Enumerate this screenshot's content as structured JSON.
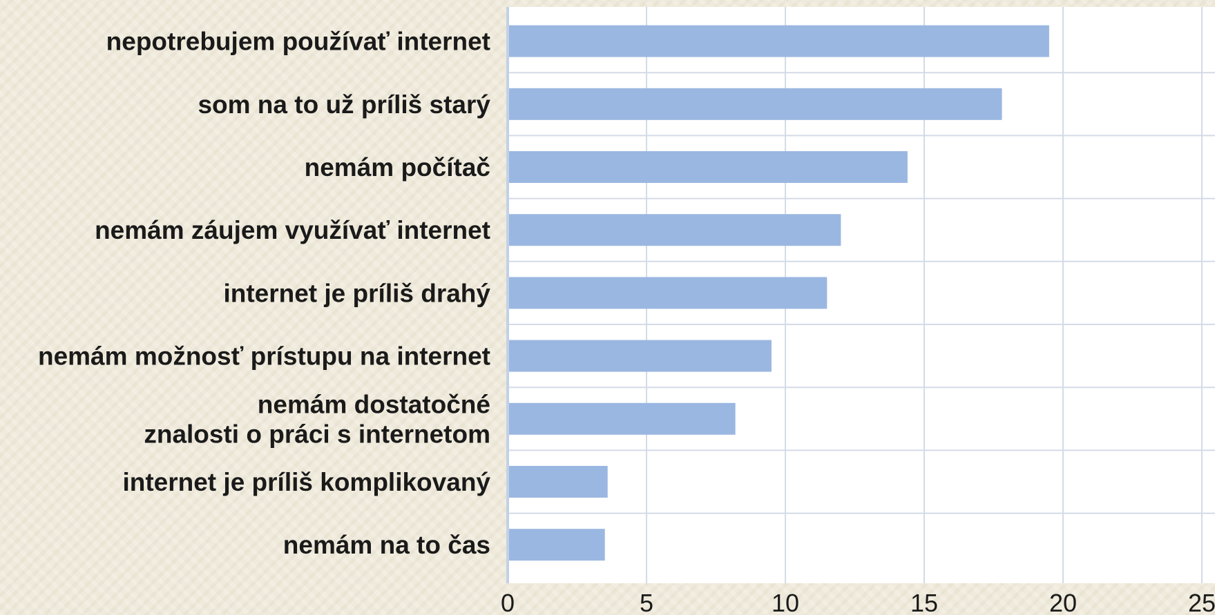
{
  "chart_data": {
    "type": "bar",
    "orientation": "horizontal",
    "categories": [
      [
        "nepotrebujem používať internet"
      ],
      [
        "som na to už príliš starý"
      ],
      [
        "nemám počítač"
      ],
      [
        "nemám záujem využívať internet"
      ],
      [
        "internet je príliš drahý"
      ],
      [
        "nemám možnosť prístupu na internet"
      ],
      [
        "nemám dostatočné",
        "znalosti o práci s internetom"
      ],
      [
        "internet je príliš komplikovaný"
      ],
      [
        "nemám na to čas"
      ]
    ],
    "values": [
      19.5,
      17.8,
      14.4,
      12.0,
      11.5,
      9.5,
      8.2,
      3.6,
      3.5
    ],
    "xlim": [
      0,
      25
    ],
    "xticks": [
      0,
      5,
      10,
      15,
      20,
      25
    ],
    "xlabel": "",
    "ylabel": "",
    "title": "",
    "grid": true,
    "legend": "none",
    "colors": {
      "bar": "#9ab7e1",
      "background": "#efeadb",
      "plot": "#ffffff"
    }
  }
}
